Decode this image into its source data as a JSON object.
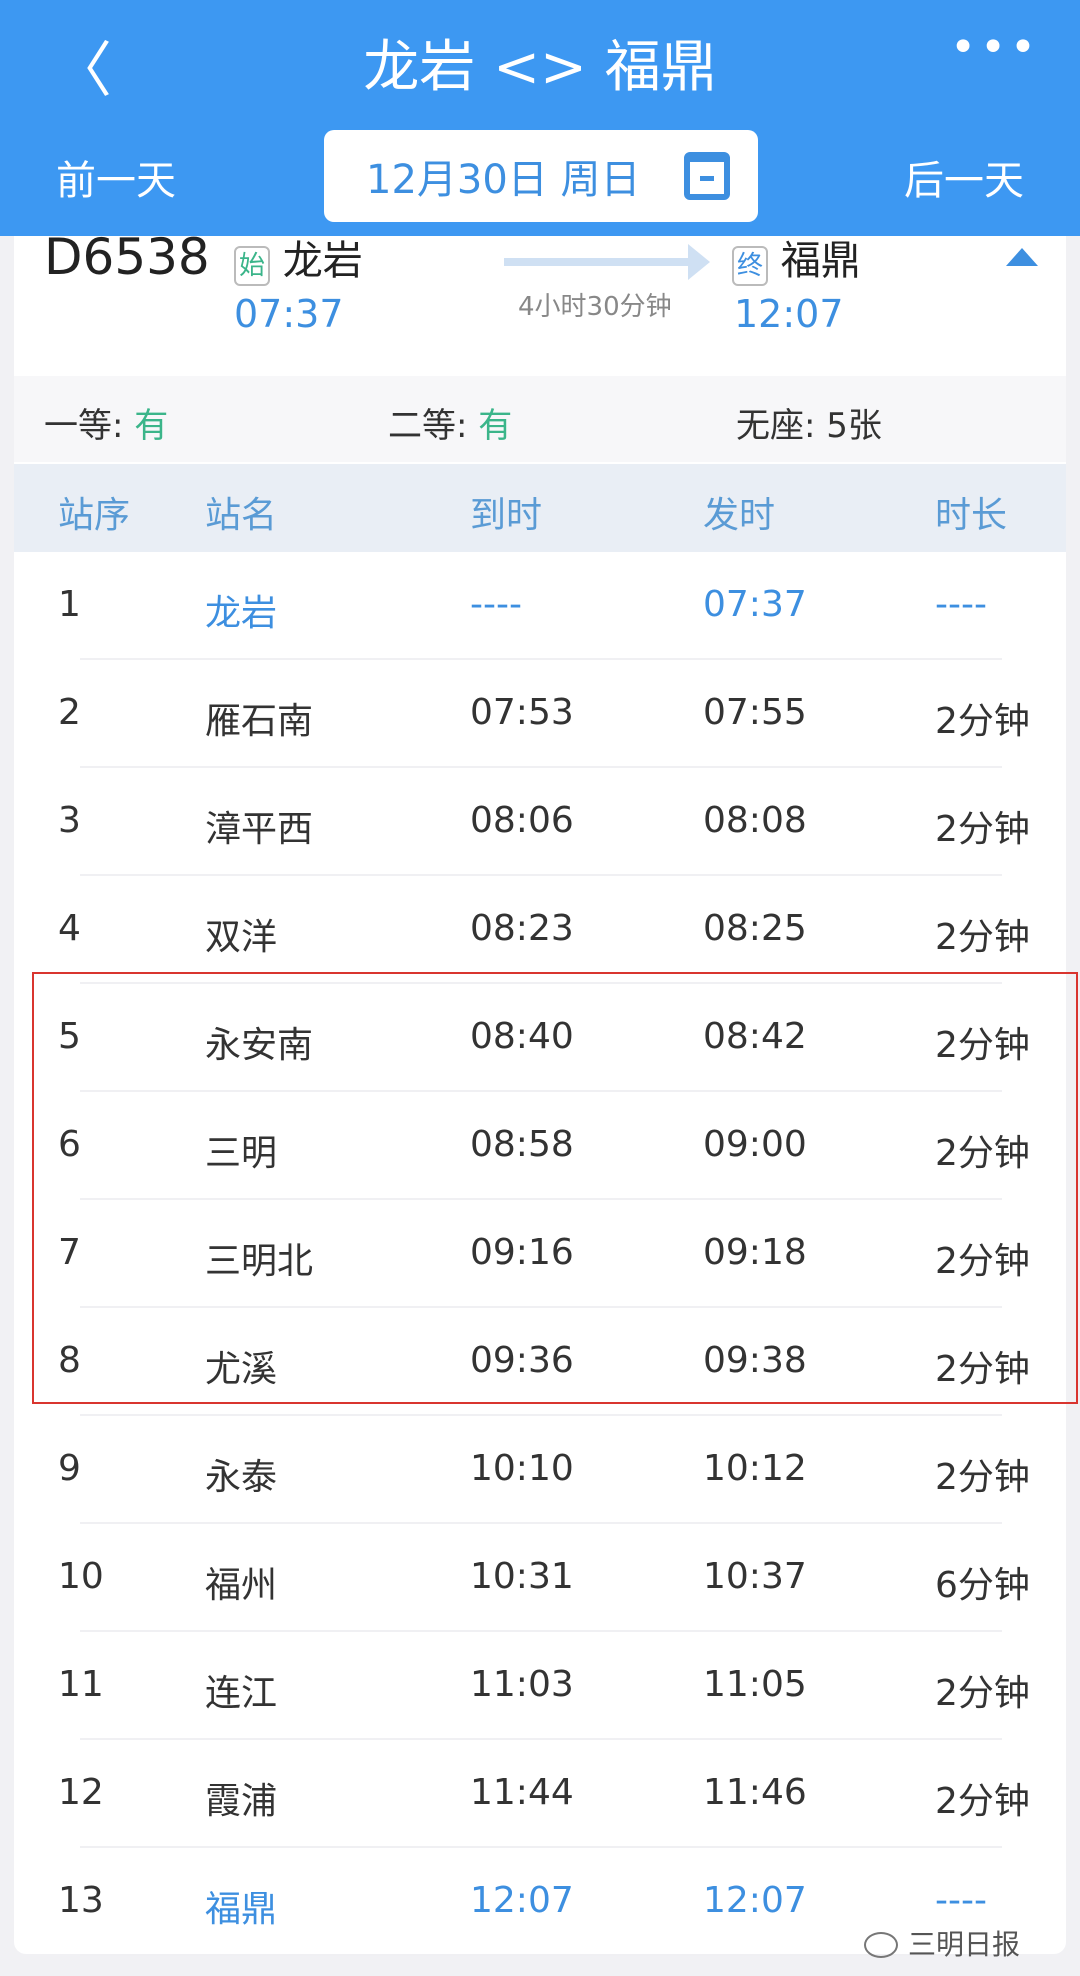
{
  "header": {
    "title": "龙岩 <> 福鼎",
    "back_icon": "chevron-left-icon",
    "more_icon": "more-icon",
    "prev_day": "前一天",
    "next_day": "后一天",
    "date": "12月30日 周日",
    "calendar_icon": "calendar-icon",
    "color": "#3d98f2"
  },
  "train": {
    "number": "D6538",
    "from_tag": "始",
    "from": "龙岩",
    "dep": "07:37",
    "duration": "4小时30分钟",
    "to_tag": "终",
    "to": "福鼎",
    "arr": "12:07"
  },
  "seats": {
    "first_label": "一等:",
    "first_value": "有",
    "second_label": "二等:",
    "second_value": "有",
    "none_label": "无座:",
    "none_value": "5张"
  },
  "table": {
    "headers": [
      "站序",
      "站名",
      "到时",
      "发时",
      "时长"
    ],
    "rows": [
      [
        "1",
        "龙岩",
        "----",
        "07:37",
        "----"
      ],
      [
        "2",
        "雁石南",
        "07:53",
        "07:55",
        "2分钟"
      ],
      [
        "3",
        "漳平西",
        "08:06",
        "08:08",
        "2分钟"
      ],
      [
        "4",
        "双洋",
        "08:23",
        "08:25",
        "2分钟"
      ],
      [
        "5",
        "永安南",
        "08:40",
        "08:42",
        "2分钟"
      ],
      [
        "6",
        "三明",
        "08:58",
        "09:00",
        "2分钟"
      ],
      [
        "7",
        "三明北",
        "09:16",
        "09:18",
        "2分钟"
      ],
      [
        "8",
        "尤溪",
        "09:36",
        "09:38",
        "2分钟"
      ],
      [
        "9",
        "永泰",
        "10:10",
        "10:12",
        "2分钟"
      ],
      [
        "10",
        "福州",
        "10:31",
        "10:37",
        "6分钟"
      ],
      [
        "11",
        "连江",
        "11:03",
        "11:05",
        "2分钟"
      ],
      [
        "12",
        "霞浦",
        "11:44",
        "11:46",
        "2分钟"
      ],
      [
        "13",
        "福鼎",
        "12:07",
        "12:07",
        "----"
      ]
    ],
    "highlighted_rows": [
      1,
      13
    ],
    "boxed_rows": [
      5,
      6,
      7,
      8
    ]
  },
  "watermark": "三明日报"
}
